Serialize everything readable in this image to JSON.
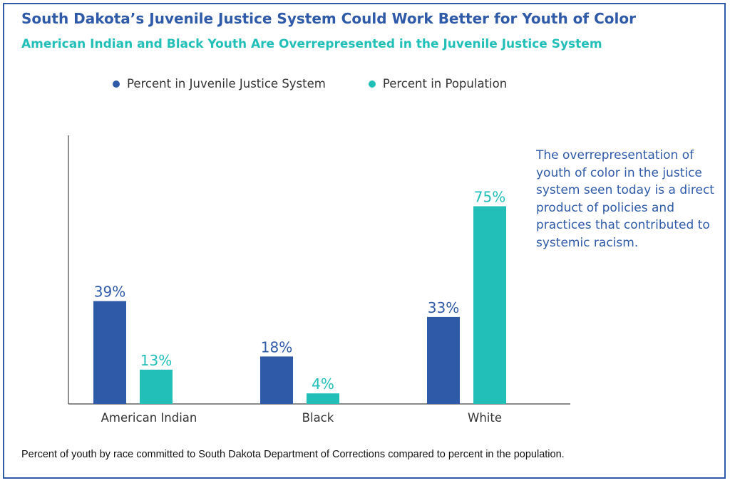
{
  "colors": {
    "frame": "#2f5aa8",
    "juvenile": "#2f5aa8",
    "population": "#22bfb8",
    "note": "#2f5aa8",
    "axis": "#444444"
  },
  "header": {
    "title": "South Dakota’s Juvenile Justice System Could Work Better for Youth of Color",
    "subtitle": "American Indian and Black Youth Are Overrepresented in the Juvenile Justice System"
  },
  "note": "The overrepresentation of youth of color in the justice system seen today is a direct product of policies and practices that contributed to systemic racism.",
  "footnote": "Percent of youth by race committed to South Dakota Department of Corrections compared to percent in the population.",
  "chart_data": {
    "type": "bar",
    "categories": [
      "American Indian",
      "Black",
      "White"
    ],
    "series": [
      {
        "name": "Percent in Juvenile Justice System",
        "values": [
          39,
          18,
          33
        ],
        "labels": [
          "39%",
          "18%",
          "33%"
        ],
        "color": "#2f5aa8"
      },
      {
        "name": "Percent in Population",
        "values": [
          13,
          4,
          75
        ],
        "labels": [
          "13%",
          "4%",
          "75%"
        ],
        "color": "#22bfb8"
      }
    ],
    "ylim": [
      0,
      100
    ],
    "grid": false,
    "legend_position": "top"
  }
}
